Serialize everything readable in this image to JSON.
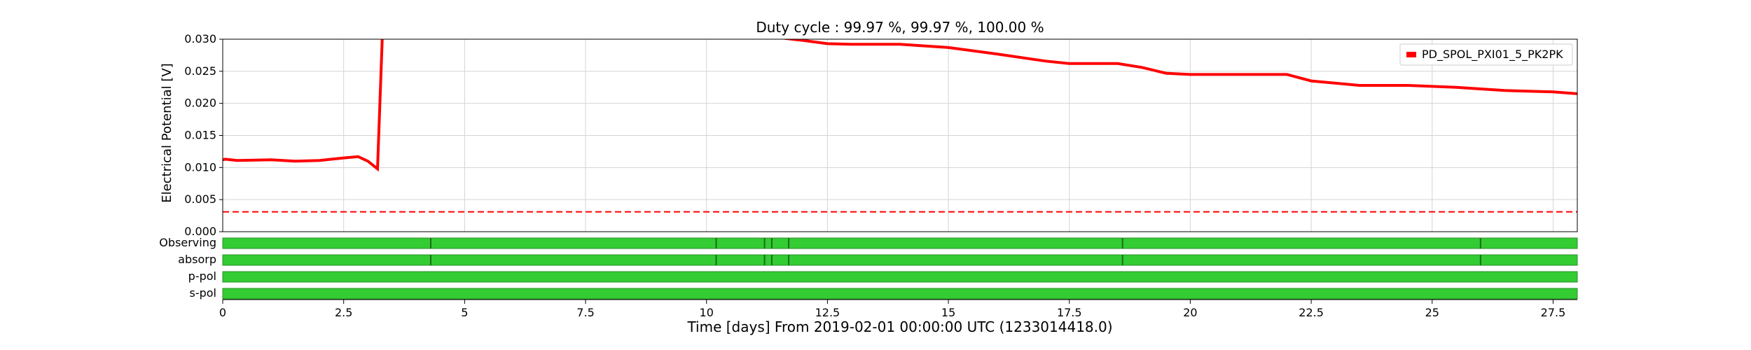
{
  "chart_data": {
    "type": "line",
    "title": "Duty cycle : 99.97 %, 99.97 %, 100.00 %",
    "xlabel": "Time [days] From 2019-02-01 00:00:00 UTC (1233014418.0)",
    "ylabel": "Electrical Potential [V]",
    "xlim": [
      0,
      28
    ],
    "ylim": [
      0,
      0.03
    ],
    "grid": true,
    "legend_position": "top-right",
    "x_ticks": [
      "0",
      "2.5",
      "5",
      "7.5",
      "10",
      "12.5",
      "15",
      "17.5",
      "20",
      "22.5",
      "25",
      "27.5"
    ],
    "x_tick_values": [
      0,
      2.5,
      5,
      7.5,
      10,
      12.5,
      15,
      17.5,
      20,
      22.5,
      25,
      27.5
    ],
    "y_ticks": [
      "0.000",
      "0.005",
      "0.010",
      "0.015",
      "0.020",
      "0.025",
      "0.030"
    ],
    "y_tick_values": [
      0,
      0.005,
      0.01,
      0.015,
      0.02,
      0.025,
      0.03
    ],
    "series": [
      {
        "name": "PD_SPOL_PXI01_5_PK2PK",
        "color": "#ff0000",
        "x": [
          0,
          0.05,
          0.3,
          1.0,
          1.5,
          2.0,
          2.5,
          2.8,
          3.0,
          3.2,
          3.3,
          11.2,
          12.0,
          12.5,
          13.0,
          14.0,
          15.0,
          16.0,
          17.0,
          17.5,
          18.5,
          19.0,
          19.5,
          20.0,
          21.0,
          22.0,
          22.5,
          23.5,
          24.5,
          25.5,
          26.5,
          27.5,
          28.0
        ],
        "y": [
          0.0112,
          0.0113,
          0.0111,
          0.0112,
          0.011,
          0.0111,
          0.0115,
          0.0117,
          0.011,
          0.0098,
          0.0305,
          0.0305,
          0.0298,
          0.0293,
          0.0292,
          0.0292,
          0.0287,
          0.0277,
          0.0266,
          0.0262,
          0.0262,
          0.0256,
          0.0247,
          0.0245,
          0.0245,
          0.0245,
          0.0235,
          0.0228,
          0.0228,
          0.0225,
          0.022,
          0.0218,
          0.0215
        ]
      },
      {
        "name": "",
        "style": "dashed",
        "color": "#ff0000",
        "x": [
          0,
          28
        ],
        "y": [
          0.0031,
          0.0031
        ]
      }
    ],
    "state_bars": [
      {
        "label": "Observing",
        "color": "#33cc33",
        "gap_color": "#1a6e1a",
        "gaps": [
          4.3,
          10.2,
          11.2,
          11.35,
          11.7,
          18.6,
          26.0
        ]
      },
      {
        "label": "absorp",
        "color": "#33cc33",
        "gap_color": "#1a6e1a",
        "gaps": [
          4.3,
          10.2,
          11.2,
          11.35,
          11.7,
          18.6,
          26.0
        ]
      },
      {
        "label": "p-pol",
        "color": "#33cc33",
        "gap_color": "#1a6e1a",
        "gaps": []
      },
      {
        "label": "s-pol",
        "color": "#33cc33",
        "gap_color": "#1a6e1a",
        "gaps": []
      }
    ]
  }
}
